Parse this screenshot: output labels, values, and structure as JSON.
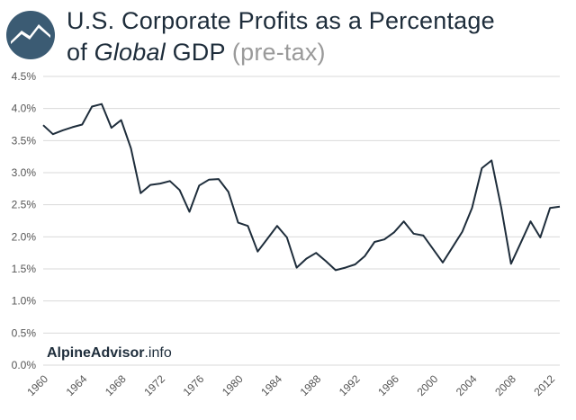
{
  "header": {
    "title_line1": "U.S. Corporate Profits as a Percentage",
    "title_line2_prefix": "of ",
    "title_line2_italic": "Global",
    "title_line2_rest": " GDP ",
    "title_line2_muted": "(pre-tax)"
  },
  "logo": {
    "icon": "mountain-logo-icon",
    "color": "#3b5b73"
  },
  "watermark": {
    "bold": "AlpineAdvisor",
    "rest": ".info"
  },
  "colors": {
    "line": "#1e2d3b",
    "grid": "#d9d9d9",
    "text": "#1e2d3b",
    "axis": "#555555"
  },
  "chart_data": {
    "type": "line",
    "title": "U.S. Corporate Profits as a Percentage of Global GDP (pre-tax)",
    "xlabel": "",
    "ylabel": "",
    "x_ticks": [
      "1960",
      "1964",
      "1968",
      "1972",
      "1976",
      "1980",
      "1984",
      "1988",
      "1992",
      "1996",
      "2000",
      "2004",
      "2008",
      "2012"
    ],
    "y_ticks": [
      "0.0%",
      "0.5%",
      "1.0%",
      "1.5%",
      "2.0%",
      "2.5%",
      "3.0%",
      "3.5%",
      "4.0%",
      "4.5%"
    ],
    "xlim": [
      1960,
      2013
    ],
    "ylim": [
      0,
      4.5
    ],
    "grid": "horizontal",
    "x": [
      1960,
      1961,
      1962,
      1963,
      1964,
      1965,
      1966,
      1967,
      1968,
      1969,
      1970,
      1971,
      1972,
      1973,
      1974,
      1975,
      1976,
      1977,
      1978,
      1979,
      1980,
      1981,
      1982,
      1983,
      1984,
      1985,
      1986,
      1987,
      1988,
      1989,
      1990,
      1991,
      1992,
      1993,
      1994,
      1995,
      1996,
      1997,
      1998,
      1999,
      2000,
      2001,
      2002,
      2003,
      2004,
      2005,
      2006,
      2007,
      2008,
      2009,
      2010,
      2011,
      2012,
      2013
    ],
    "values": [
      3.74,
      3.6,
      3.66,
      3.71,
      3.75,
      4.03,
      4.07,
      3.7,
      3.82,
      3.38,
      2.68,
      2.81,
      2.83,
      2.87,
      2.73,
      2.39,
      2.8,
      2.89,
      2.9,
      2.7,
      2.22,
      2.17,
      1.77,
      1.97,
      2.17,
      1.99,
      1.52,
      1.66,
      1.75,
      1.62,
      1.48,
      1.52,
      1.57,
      1.7,
      1.92,
      1.96,
      2.07,
      2.24,
      2.05,
      2.02,
      1.81,
      1.6,
      1.84,
      2.08,
      2.45,
      3.07,
      3.19,
      2.45,
      1.58,
      1.91,
      2.24,
      1.99,
      2.45,
      2.47
    ]
  }
}
